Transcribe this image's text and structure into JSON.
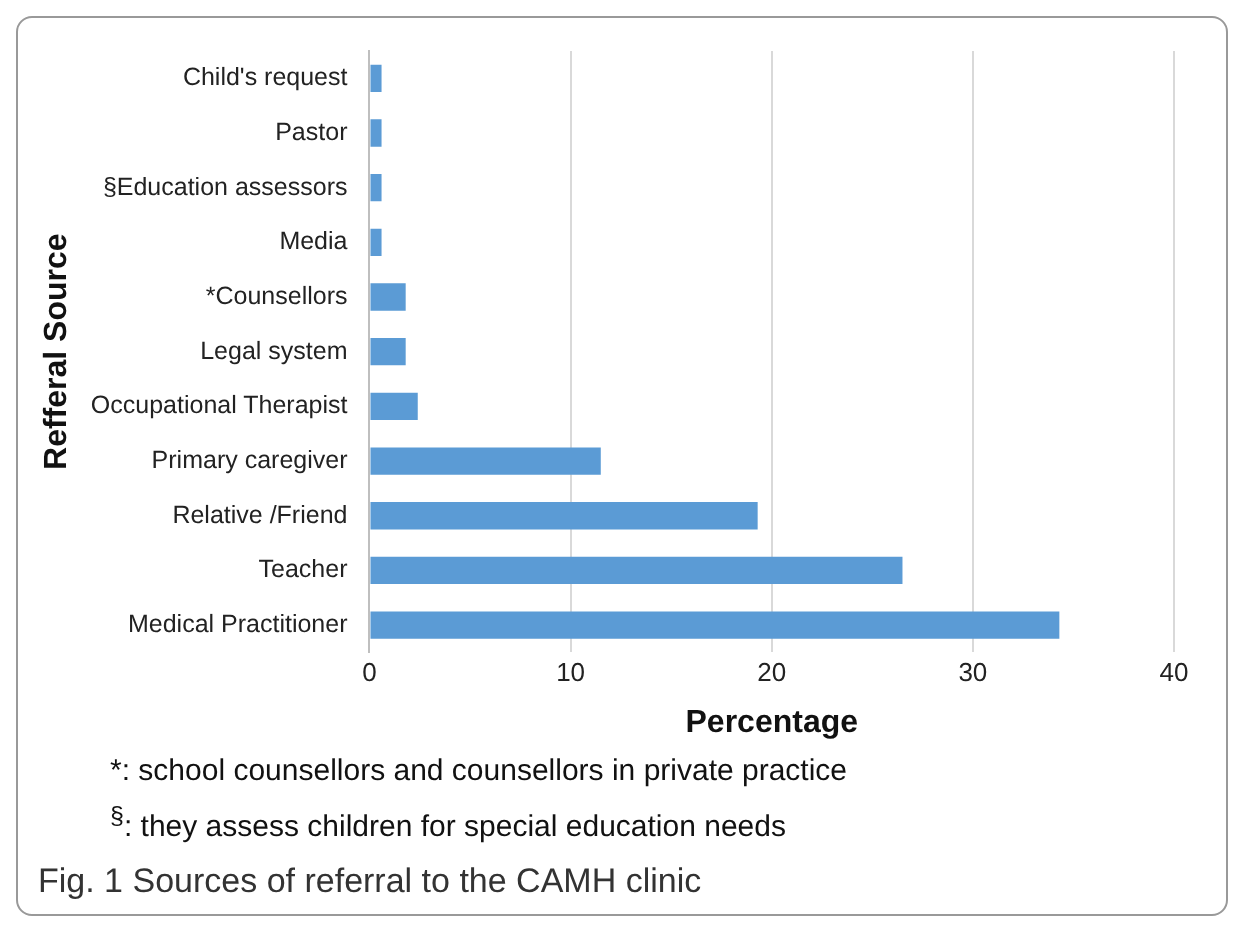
{
  "chart_data": {
    "type": "bar",
    "orientation": "horizontal",
    "title": "Fig. 1  Sources of referral to the CAMH clinic",
    "xlabel": "Percentage",
    "ylabel": "Refferal Source",
    "categories": [
      "Child's request",
      "Pastor",
      "§Education assessors",
      "Media",
      "*Counsellors",
      "Legal system",
      "Occupational Therapist",
      "Primary caregiver",
      "Relative /Friend",
      "Teacher",
      "Medical Practitioner"
    ],
    "values": [
      0.6,
      0.6,
      0.6,
      0.6,
      1.8,
      1.8,
      2.4,
      11.5,
      19.3,
      26.5,
      34.3
    ],
    "color": "#5b9bd5",
    "xlim": [
      0,
      40
    ],
    "xticks": [
      0,
      10,
      20,
      30,
      40
    ],
    "grid": "x",
    "annotations": [
      "*: school counsellors and counsellors in private practice",
      "$^{§}$: they assess children for special education needs"
    ]
  }
}
